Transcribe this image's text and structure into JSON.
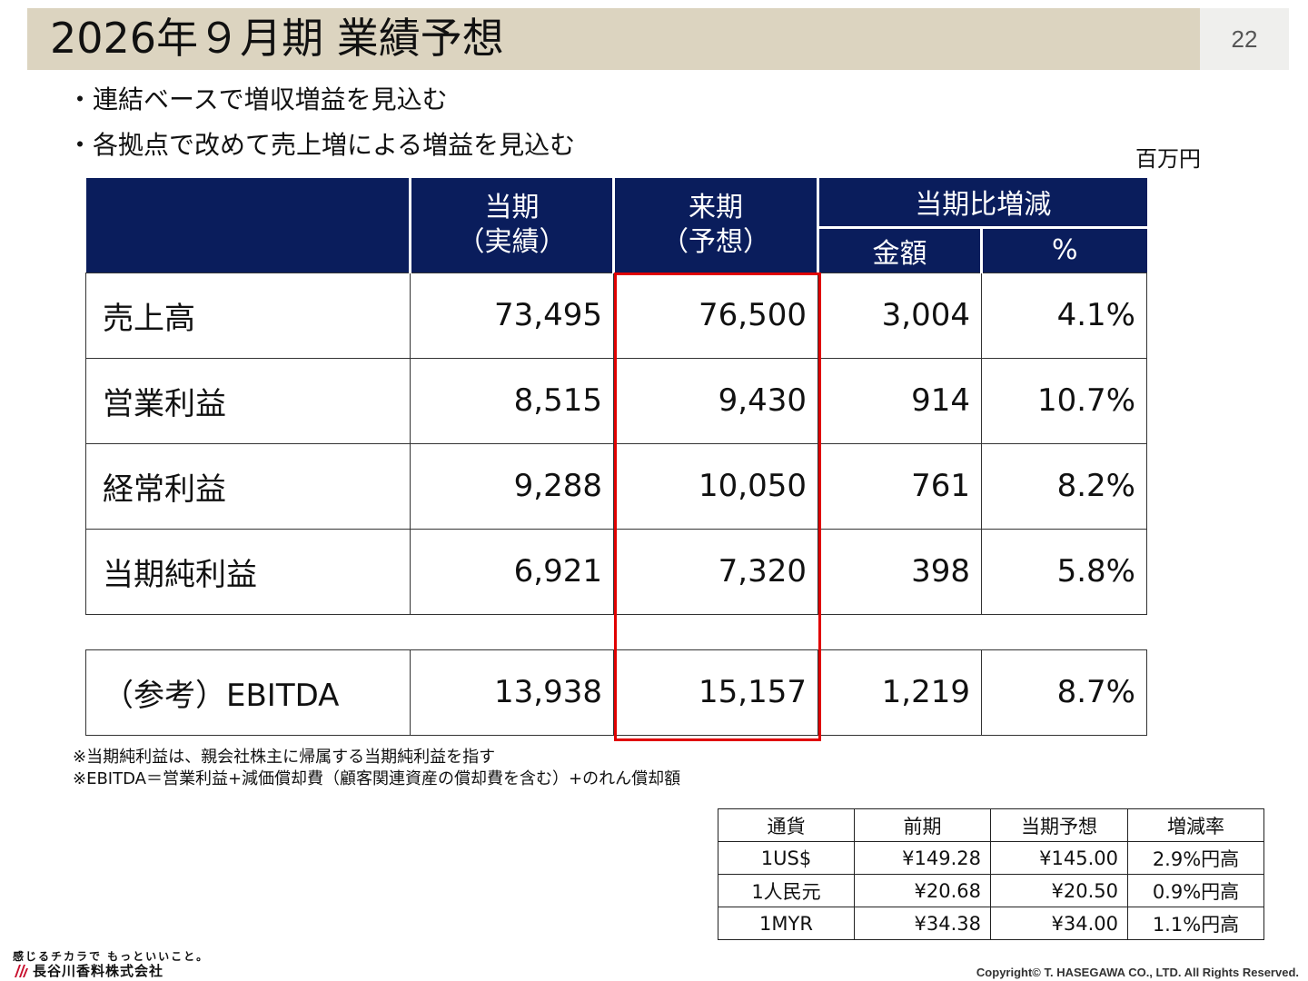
{
  "slide": {
    "title": "2026年９月期 業績予想",
    "page_number": "22"
  },
  "bullets": [
    "・連結ベースで増収増益を見込む",
    "・各拠点で改めて売上増による増益を見込む"
  ],
  "unit_label": "百万円",
  "main_table": {
    "headers": {
      "current_l1": "当期",
      "current_l2": "（実績）",
      "next_l1": "来期",
      "next_l2": "（予想）",
      "change": "当期比増減",
      "amount": "金額",
      "percent": "%"
    },
    "rows": [
      {
        "label": "売上高",
        "current": "73,495",
        "next": "76,500",
        "amount": "3,004",
        "percent": "4.1%"
      },
      {
        "label": "営業利益",
        "current": "8,515",
        "next": "9,430",
        "amount": "914",
        "percent": "10.7%"
      },
      {
        "label": "経常利益",
        "current": "9,288",
        "next": "10,050",
        "amount": "761",
        "percent": "8.2%"
      },
      {
        "label": "当期純利益",
        "current": "6,921",
        "next": "7,320",
        "amount": "398",
        "percent": "5.8%"
      }
    ],
    "ebitda_row": {
      "label": "（参考）EBITDA",
      "current": "13,938",
      "next": "15,157",
      "amount": "1,219",
      "percent": "8.7%"
    },
    "highlight_color": "#e00000",
    "header_color": "#0a1d5c"
  },
  "notes": [
    "※当期純利益は、親会社株主に帰属する当期純利益を指す",
    "※EBITDA＝営業利益+減価償却費（顧客関連資産の償却費を含む）+のれん償却額"
  ],
  "fx_table": {
    "headers": [
      "通貨",
      "前期",
      "当期予想",
      "増減率"
    ],
    "rows": [
      [
        "1US$",
        "¥149.28",
        "¥145.00",
        "2.9%円高"
      ],
      [
        "1人民元",
        "¥20.68",
        "¥20.50",
        "0.9%円高"
      ],
      [
        "1MYR",
        "¥34.38",
        "¥34.00",
        "1.1%円高"
      ]
    ]
  },
  "footer": {
    "tagline": "感じるチカラで もっといいこと。",
    "company": "長谷川香料株式会社",
    "copyright": "Copyright© T. HASEGAWA CO., LTD. All Rights Reserved."
  },
  "colors": {
    "title_bar": "#dcd4c0",
    "page_box": "#efefed",
    "logo_red": "#c8102e"
  }
}
